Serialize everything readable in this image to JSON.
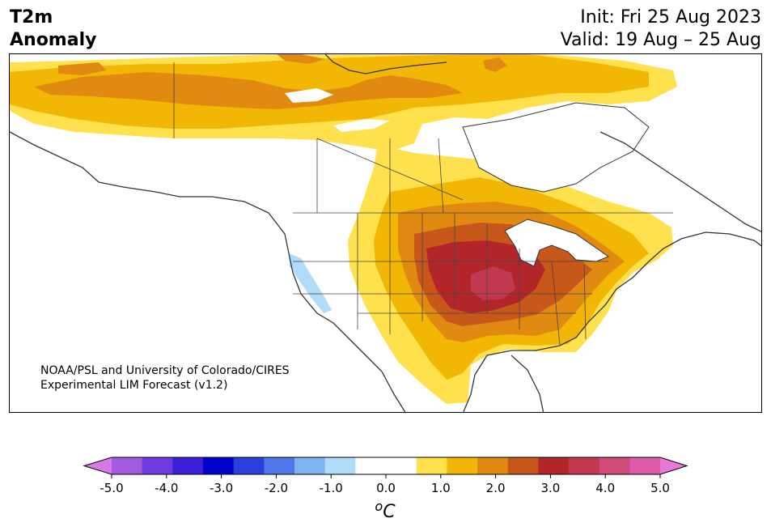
{
  "header": {
    "title_line1": "T2m",
    "title_line2": "Anomaly",
    "init_label": "Init: Fri 25 Aug 2023",
    "valid_label": "Valid: 19 Aug – 25 Aug"
  },
  "map": {
    "credit_line1": "NOAA/PSL and University of Colorado/CIRES",
    "credit_line2": "Experimental LIM Forecast (v1.2)",
    "region": "North America",
    "variable": "2-metre temperature anomaly"
  },
  "colorbar": {
    "units": "°C",
    "units_base": "C",
    "units_super": "o",
    "tick_labels": [
      "-5.0",
      "-4.0",
      "-3.0",
      "-2.0",
      "-1.0",
      "0.0",
      "1.0",
      "2.0",
      "3.0",
      "4.0",
      "5.0"
    ],
    "under_color": "#d879e8",
    "over_color": "#e879d8",
    "bin_colors": [
      "#a35be0",
      "#6f3adf",
      "#3a1fd6",
      "#0000cc",
      "#2a3fdc",
      "#4f76e6",
      "#7eb4f2",
      "#b0dcfa",
      "#ffffff",
      "#ffffff",
      "#ffe14d",
      "#f2b705",
      "#e08a12",
      "#c8581a",
      "#b2262a",
      "#c2384f",
      "#cf4a78",
      "#dc5aa6"
    ]
  },
  "colors": {
    "anomaly_0_5_to_1": "#ffe14d",
    "anomaly_1_to_1_5": "#f2b705",
    "anomaly_1_5_to_2": "#e08a12",
    "anomaly_2_to_2_5": "#c8581a",
    "anomaly_2_5_to_3": "#b2262a",
    "anomaly_3_to_3_5": "#c2384f",
    "anomaly_neg_0_5_to_neg_1": "#b0dcfa",
    "coastline": "#333333"
  }
}
